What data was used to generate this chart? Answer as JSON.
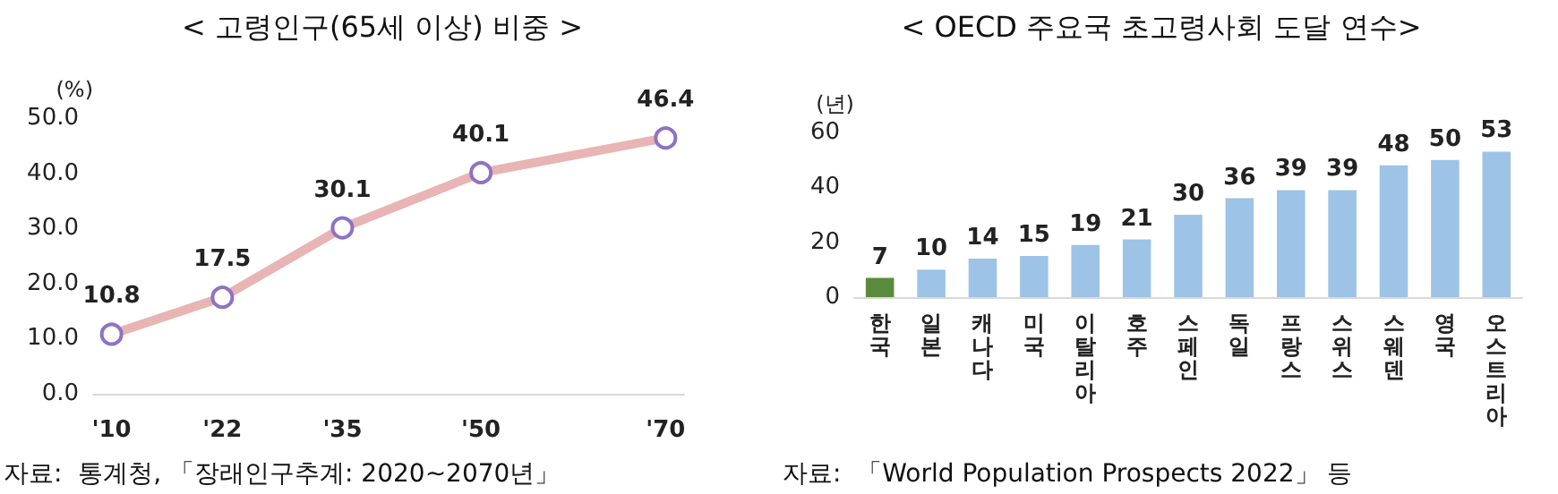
{
  "chart_data": [
    {
      "type": "line",
      "title": "< 고령인구(65세 이상) 비중 >",
      "ylabel": "(%)",
      "x": [
        2010,
        2022,
        2035,
        2050,
        2070
      ],
      "series": [
        {
          "color": "#e8b4b4",
          "values": [
            10.8,
            17.5,
            30.1,
            40.1,
            46.4
          ]
        }
      ],
      "xlim": [
        2008,
        2072
      ],
      "xticks": [
        {
          "value": 2010,
          "label": "'10"
        },
        {
          "value": 2022,
          "label": "'22"
        },
        {
          "value": 2035,
          "label": "'35"
        },
        {
          "value": 2050,
          "label": "'50"
        },
        {
          "value": 2070,
          "label": "'70"
        }
      ],
      "ylim": [
        0,
        50
      ],
      "yticks": [
        {
          "value": 0,
          "label": "0.0"
        },
        {
          "value": 10,
          "label": "10.0"
        },
        {
          "value": 20,
          "label": "20.0"
        },
        {
          "value": 30,
          "label": "30.0"
        },
        {
          "value": 40,
          "label": "40.0"
        },
        {
          "value": 50,
          "label": "50.0"
        }
      ],
      "marker": "circle",
      "data_labels": true,
      "annotations": [
        "자료:  통계청, 「장래인구추계: 2020~2070년」"
      ]
    },
    {
      "type": "bar",
      "title": "< OECD 주요국 초고령사회 도달 연수>",
      "ylabel": "(년)",
      "categories": [
        "한국",
        "일본",
        "캐나다",
        "미국",
        "이탈리아",
        "호주",
        "스페인",
        "독일",
        "프랑스",
        "스위스",
        "스웨덴",
        "영국",
        "오스트리아"
      ],
      "values": [
        7,
        10,
        14,
        15,
        19,
        21,
        30,
        36,
        39,
        39,
        48,
        50,
        53
      ],
      "colors": [
        "#5b8a3c",
        "#9dc3e6",
        "#9dc3e6",
        "#9dc3e6",
        "#9dc3e6",
        "#9dc3e6",
        "#9dc3e6",
        "#9dc3e6",
        "#9dc3e6",
        "#9dc3e6",
        "#9dc3e6",
        "#9dc3e6",
        "#9dc3e6"
      ],
      "ylim": [
        0,
        60
      ],
      "yticks": [
        0,
        20,
        40,
        60
      ],
      "data_labels": true,
      "annotations": [
        "자료:  「World Population Prospects 2022」 등"
      ]
    }
  ]
}
